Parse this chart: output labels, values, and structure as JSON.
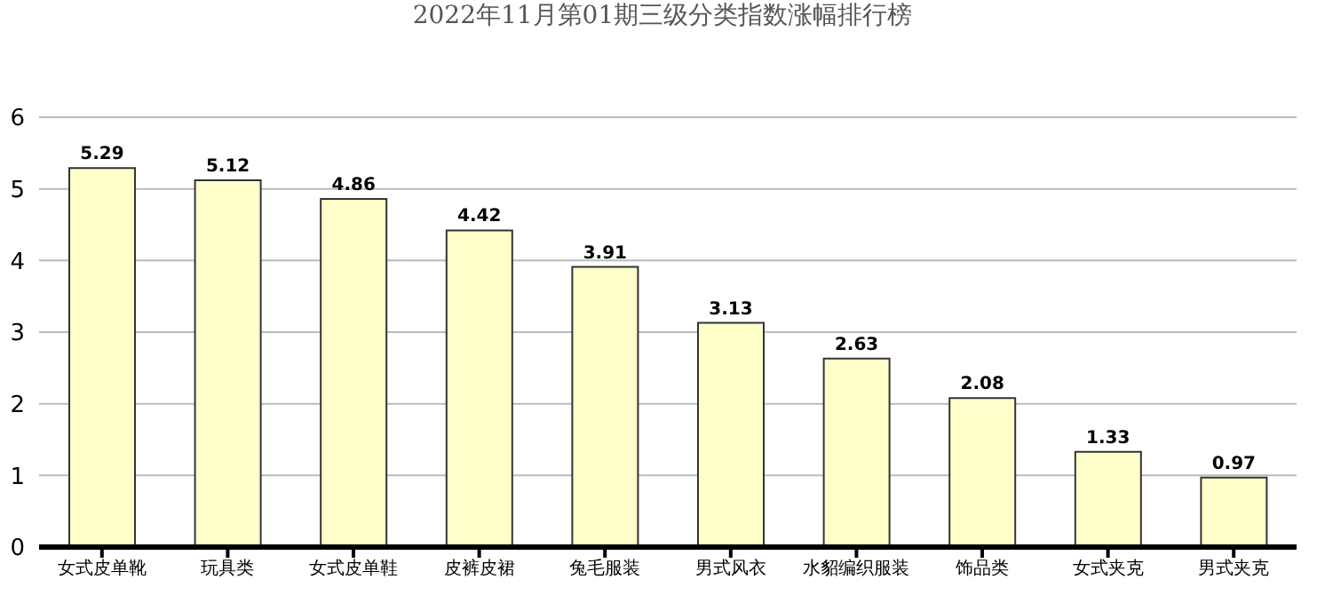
{
  "chart_data": {
    "type": "bar",
    "title": "2022年11月第01期三级分类指数涨幅排行榜",
    "categories": [
      "女式皮单靴",
      "玩具类",
      "女式皮单鞋",
      "皮裤皮裙",
      "兔毛服装",
      "男式风衣",
      "水貂编织服装",
      "饰品类",
      "女式夹克",
      "男式夹克"
    ],
    "values": [
      5.29,
      5.12,
      4.86,
      4.42,
      3.91,
      3.13,
      2.63,
      2.08,
      1.33,
      0.97
    ],
    "color": "#ffffcc",
    "ylim": [
      0,
      6
    ],
    "yticks": [
      0,
      1,
      2,
      3,
      4,
      5,
      6
    ],
    "grid": "y",
    "data_labels": true
  }
}
